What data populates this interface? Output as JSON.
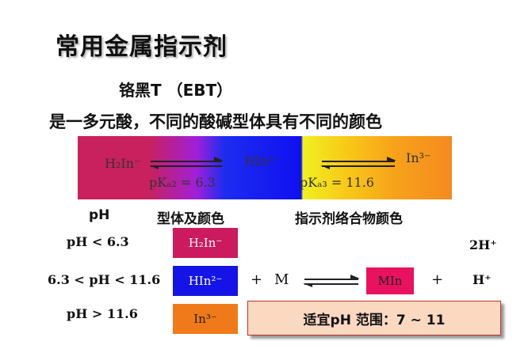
{
  "title": "常用金属指示剂",
  "subtitle": "铬黑T （EBT）",
  "description": "是一多元酸，不同的酸碱型体具有不同的颜色",
  "band": {
    "species1": "H₂In⁻",
    "species2": "HIn²⁻",
    "species3": "In³⁻",
    "pka2": "pKₐ₂ = 6.3",
    "pka3": "pKₐ₃ = 11.6",
    "colors": [
      "#c8215e",
      "#1010f0",
      "#f58a20"
    ]
  },
  "table": {
    "header_ph": "pH",
    "header_form": "型体及颜色",
    "header_complex": "指示剂络合物颜色",
    "rows": [
      {
        "condition": "pH < 6.3",
        "species": "H₂In⁻",
        "color": "#cc1a5e"
      },
      {
        "condition": "6.3 < pH < 11.6",
        "species": "HIn²⁻",
        "color": "#1414e6"
      },
      {
        "condition": "pH > 11.6",
        "species": "In³⁻",
        "color": "#f07a1a"
      }
    ]
  },
  "reaction": {
    "plus1": "+",
    "metal": "M",
    "complex": "MIn",
    "complex_color": "#e8125f",
    "plus2": "+",
    "product_top": "2H⁺",
    "product_mid": "H⁺"
  },
  "range_label": "适宜pH 范围：7 ~ 11"
}
